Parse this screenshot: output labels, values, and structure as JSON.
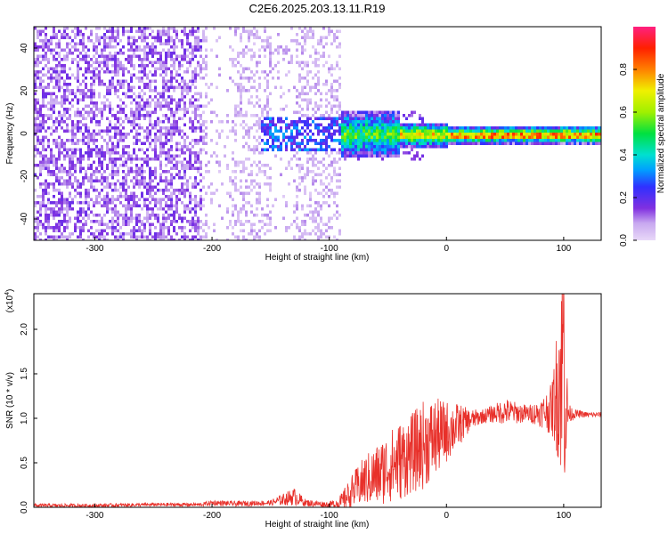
{
  "title": "C2E6.2025.203.13.11.R19",
  "chart_data": [
    {
      "type": "heatmap",
      "xlabel": "Height of straight line (km)",
      "ylabel": "Frequency (Hz)",
      "xlim": [
        -352,
        132
      ],
      "ylim": [
        -50,
        50
      ],
      "x_ticks": [
        -300,
        -200,
        -100,
        0,
        100
      ],
      "y_ticks": [
        -40,
        -20,
        0,
        20,
        40
      ],
      "colorbar": {
        "label": "Normalized spectral amplitude",
        "range": [
          0.0,
          1.0
        ],
        "ticks": [
          0.0,
          0.2,
          0.4,
          0.6,
          0.8
        ]
      },
      "regions": [
        {
          "x_start": -352,
          "x_end": -210,
          "description_level": 0.15
        },
        {
          "x_start": -210,
          "x_end": -90,
          "description_level": 0.1
        },
        {
          "x_start": -90,
          "x_end": 132,
          "band_center_hz": 0,
          "peak_level": 0.95
        }
      ]
    },
    {
      "type": "line",
      "xlabel": "Height of straight line (km)",
      "ylabel": "SNR (10 * v/v)",
      "y_scale_label": "(x10",
      "y_scale_exp": "4",
      "xlim": [
        -352,
        132
      ],
      "ylim": [
        0,
        2.4
      ],
      "x_ticks": [
        -300,
        -200,
        -100,
        0,
        100
      ],
      "y_ticks": [
        0.0,
        0.5,
        1.0,
        1.5,
        2.0
      ],
      "y_tick_labels": [
        "0.0",
        "0.5",
        "1.0",
        "1.5",
        "2.0"
      ],
      "series": [
        {
          "color": "#e8302a",
          "x": [
            -352,
            -300,
            -250,
            -210,
            -200,
            -180,
            -150,
            -130,
            -120,
            -100,
            -90,
            -80,
            -70,
            -60,
            -50,
            -40,
            -30,
            -20,
            -10,
            0,
            10,
            20,
            30,
            40,
            50,
            60,
            70,
            80,
            90,
            95,
            98,
            100,
            102,
            105,
            110,
            120,
            132
          ],
          "y": [
            0.02,
            0.02,
            0.03,
            0.03,
            0.05,
            0.04,
            0.05,
            0.12,
            0.05,
            0.03,
            0.05,
            0.18,
            0.3,
            0.35,
            0.45,
            0.52,
            0.6,
            0.7,
            0.78,
            0.85,
            0.92,
            0.98,
            1.02,
            1.05,
            1.08,
            1.06,
            1.05,
            1.06,
            1.1,
            1.35,
            1.6,
            1.8,
            1.1,
            1.05,
            1.05,
            1.04,
            1.04
          ],
          "noise": [
            0.02,
            0.02,
            0.02,
            0.02,
            0.03,
            0.03,
            0.03,
            0.1,
            0.04,
            0.03,
            0.1,
            0.2,
            0.28,
            0.35,
            0.4,
            0.45,
            0.45,
            0.5,
            0.45,
            0.35,
            0.25,
            0.12,
            0.08,
            0.1,
            0.15,
            0.12,
            0.1,
            0.15,
            0.3,
            0.8,
            1.3,
            1.8,
            0.6,
            0.1,
            0.05,
            0.03,
            0.03
          ]
        }
      ]
    }
  ]
}
